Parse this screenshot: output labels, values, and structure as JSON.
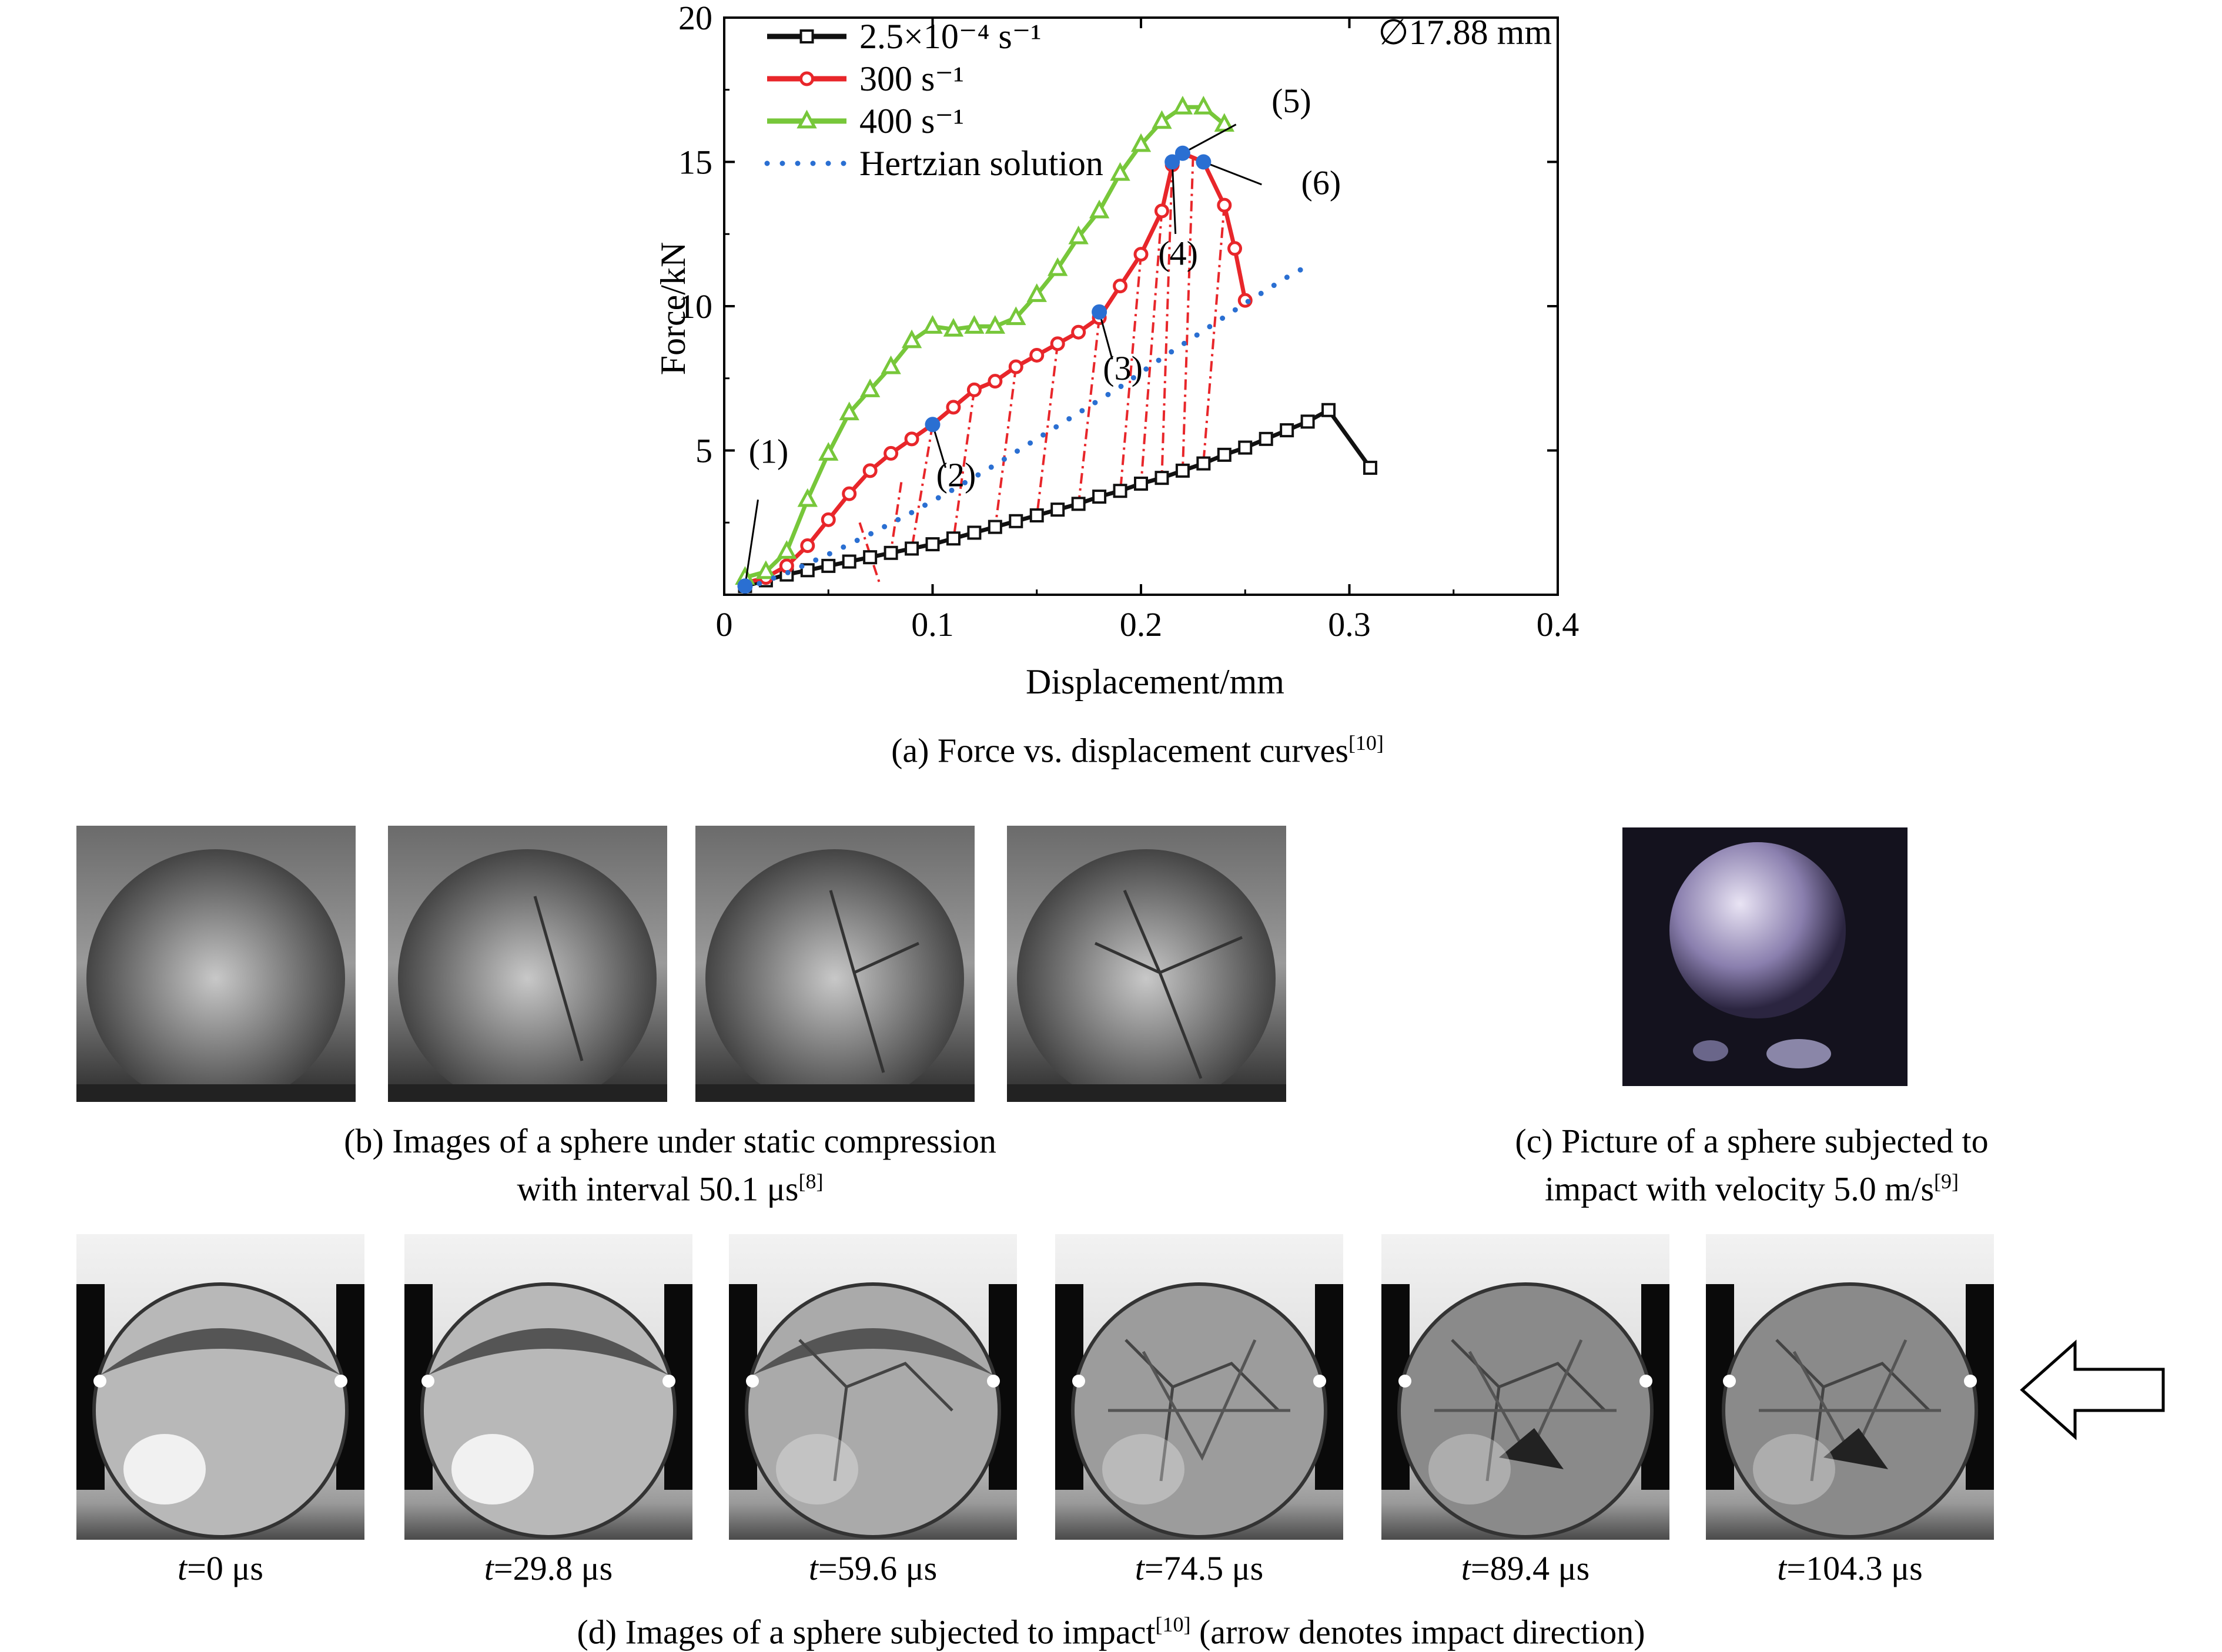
{
  "chart_data": {
    "type": "line",
    "xlabel": "Displacement/mm",
    "ylabel": "Force/kN",
    "xlim": [
      0,
      0.4
    ],
    "ylim": [
      0,
      20
    ],
    "xticks": [
      "0",
      "0.1",
      "0.2",
      "0.3",
      "0.4"
    ],
    "yticks": [
      "5",
      "10",
      "15",
      "20"
    ],
    "legend_position": "top-left",
    "annotation": "∅17.88 mm",
    "series": [
      {
        "name": "2.5×10⁻⁴ s⁻¹",
        "color": "#111111",
        "marker": "square",
        "x": [
          0.01,
          0.02,
          0.03,
          0.04,
          0.05,
          0.06,
          0.07,
          0.08,
          0.09,
          0.1,
          0.11,
          0.12,
          0.13,
          0.14,
          0.15,
          0.16,
          0.17,
          0.18,
          0.19,
          0.2,
          0.21,
          0.22,
          0.23,
          0.24,
          0.25,
          0.26,
          0.27,
          0.28,
          0.29,
          0.31
        ],
        "y": [
          0.3,
          0.5,
          0.7,
          0.85,
          1.0,
          1.15,
          1.3,
          1.45,
          1.6,
          1.75,
          1.95,
          2.15,
          2.35,
          2.55,
          2.75,
          2.95,
          3.15,
          3.4,
          3.6,
          3.85,
          4.05,
          4.3,
          4.55,
          4.85,
          5.1,
          5.4,
          5.7,
          6.0,
          6.4,
          4.4
        ]
      },
      {
        "name": "300 s⁻¹",
        "color": "#e8262a",
        "marker": "circle",
        "x": [
          0.01,
          0.02,
          0.03,
          0.04,
          0.05,
          0.06,
          0.07,
          0.08,
          0.09,
          0.1,
          0.11,
          0.12,
          0.13,
          0.14,
          0.15,
          0.16,
          0.17,
          0.18,
          0.19,
          0.2,
          0.21,
          0.215,
          0.22,
          0.23,
          0.24,
          0.245,
          0.25
        ],
        "y": [
          0.4,
          0.6,
          1.0,
          1.7,
          2.6,
          3.5,
          4.3,
          4.9,
          5.4,
          5.9,
          6.5,
          7.1,
          7.4,
          7.9,
          8.3,
          8.7,
          9.1,
          9.6,
          10.7,
          11.8,
          13.3,
          14.9,
          15.3,
          15.0,
          13.5,
          12.0,
          10.2
        ]
      },
      {
        "name": "400 s⁻¹",
        "color": "#77c73a",
        "marker": "triangle",
        "x": [
          0.01,
          0.02,
          0.03,
          0.04,
          0.05,
          0.06,
          0.07,
          0.08,
          0.09,
          0.1,
          0.11,
          0.12,
          0.13,
          0.14,
          0.15,
          0.16,
          0.17,
          0.18,
          0.19,
          0.2,
          0.21,
          0.22,
          0.23,
          0.24
        ],
        "y": [
          0.6,
          0.8,
          1.5,
          3.3,
          4.9,
          6.3,
          7.1,
          7.9,
          8.8,
          9.3,
          9.2,
          9.3,
          9.3,
          9.6,
          10.4,
          11.3,
          12.4,
          13.3,
          14.6,
          15.6,
          16.4,
          16.9,
          16.9,
          16.3
        ]
      },
      {
        "name": "Hertzian solution",
        "color": "#2a6fd2",
        "marker": "dot",
        "x": [
          0.01,
          0.03,
          0.05,
          0.07,
          0.09,
          0.11,
          0.13,
          0.15,
          0.17,
          0.19,
          0.21,
          0.23,
          0.25,
          0.27,
          0.28
        ],
        "y": [
          0.2,
          0.75,
          1.4,
          2.1,
          2.85,
          3.65,
          4.5,
          5.4,
          6.3,
          7.2,
          8.2,
          9.15,
          10.1,
          11.0,
          11.4
        ]
      }
    ],
    "points": [
      {
        "label": "(1)",
        "x": 0.01,
        "y": 0.3
      },
      {
        "label": "(2)",
        "x": 0.1,
        "y": 5.9
      },
      {
        "label": "(3)",
        "x": 0.18,
        "y": 9.8
      },
      {
        "label": "(4)",
        "x": 0.215,
        "y": 15.0
      },
      {
        "label": "(5)",
        "x": 0.22,
        "y": 15.3
      },
      {
        "label": "(6)",
        "x": 0.23,
        "y": 15.0
      }
    ],
    "dashdot_links": [
      [
        0.065,
        2.5,
        0.075,
        0.3
      ],
      [
        0.085,
        3.9,
        0.08,
        1.5
      ],
      [
        0.1,
        5.9,
        0.09,
        1.6
      ],
      [
        0.12,
        7.1,
        0.11,
        1.9
      ],
      [
        0.14,
        7.9,
        0.13,
        2.3
      ],
      [
        0.16,
        8.7,
        0.15,
        2.7
      ],
      [
        0.18,
        9.6,
        0.17,
        3.1
      ],
      [
        0.2,
        11.8,
        0.19,
        3.5
      ],
      [
        0.21,
        13.3,
        0.2,
        3.8
      ],
      [
        0.215,
        14.9,
        0.21,
        4.1
      ],
      [
        0.225,
        15.2,
        0.22,
        4.3
      ],
      [
        0.24,
        13.5,
        0.23,
        4.6
      ]
    ]
  },
  "captions": {
    "a_text": "(a) Force vs. displacement curves",
    "a_ref": "[10]",
    "b_line1": "(b) Images of a sphere under static compression",
    "b_line2_text": "with interval 50.1 μs",
    "b_ref": "[8]",
    "c_line1": "(c) Picture of a sphere subjected to",
    "c_line2_text": "impact with velocity 5.0 m/s",
    "c_ref": "[9]",
    "d_text_a": "(d) Images of a sphere subjected to impact",
    "d_ref": "[10]",
    "d_text_b": " (arrow denotes impact direction)"
  },
  "time_labels": [
    {
      "t": "t",
      "rest": "=0 μs"
    },
    {
      "t": "t",
      "rest": "=29.8 μs"
    },
    {
      "t": "t",
      "rest": "=59.6 μs"
    },
    {
      "t": "t",
      "rest": "=74.5 μs"
    },
    {
      "t": "t",
      "rest": "=89.4 μs"
    },
    {
      "t": "t",
      "rest": "=104.3 μs"
    }
  ],
  "arrow": {
    "icon": "left-arrow-icon",
    "meaning": "impact direction"
  }
}
